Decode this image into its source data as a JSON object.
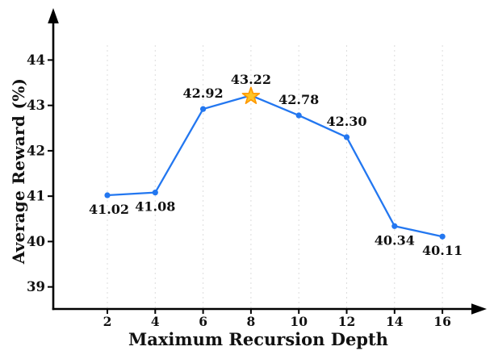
{
  "chart_data": {
    "type": "line",
    "title": "",
    "xlabel": "Maximum Recursion Depth",
    "ylabel": "Average Reward (%)",
    "x": [
      2,
      4,
      6,
      8,
      10,
      12,
      14,
      16
    ],
    "series": [
      {
        "name": "Average Reward",
        "values": [
          41.02,
          41.08,
          42.92,
          43.22,
          42.78,
          42.3,
          40.34,
          40.11
        ]
      }
    ],
    "data_labels": [
      "41.02",
      "41.08",
      "42.92",
      "43.22",
      "42.78",
      "42.30",
      "40.34",
      "40.11"
    ],
    "label_positions": [
      "below",
      "below",
      "above",
      "above",
      "above",
      "above",
      "below",
      "below"
    ],
    "highlight_index": 3,
    "highlight_marker": "star",
    "x_ticks": [
      2,
      4,
      6,
      8,
      10,
      12,
      14,
      16
    ],
    "y_ticks": [
      39,
      40,
      41,
      42,
      43,
      44
    ],
    "xlim": [
      0,
      17.5
    ],
    "ylim": [
      38.5,
      45.1
    ],
    "grid": "vertical-dotted",
    "legend": "none",
    "colors": {
      "line": "#2377f0",
      "marker": "#2377f0",
      "star_fill": "#ffc425",
      "star_edge": "#ff9800",
      "axis": "#000000",
      "grid": "#dcdcdc",
      "text": "#111111"
    }
  }
}
